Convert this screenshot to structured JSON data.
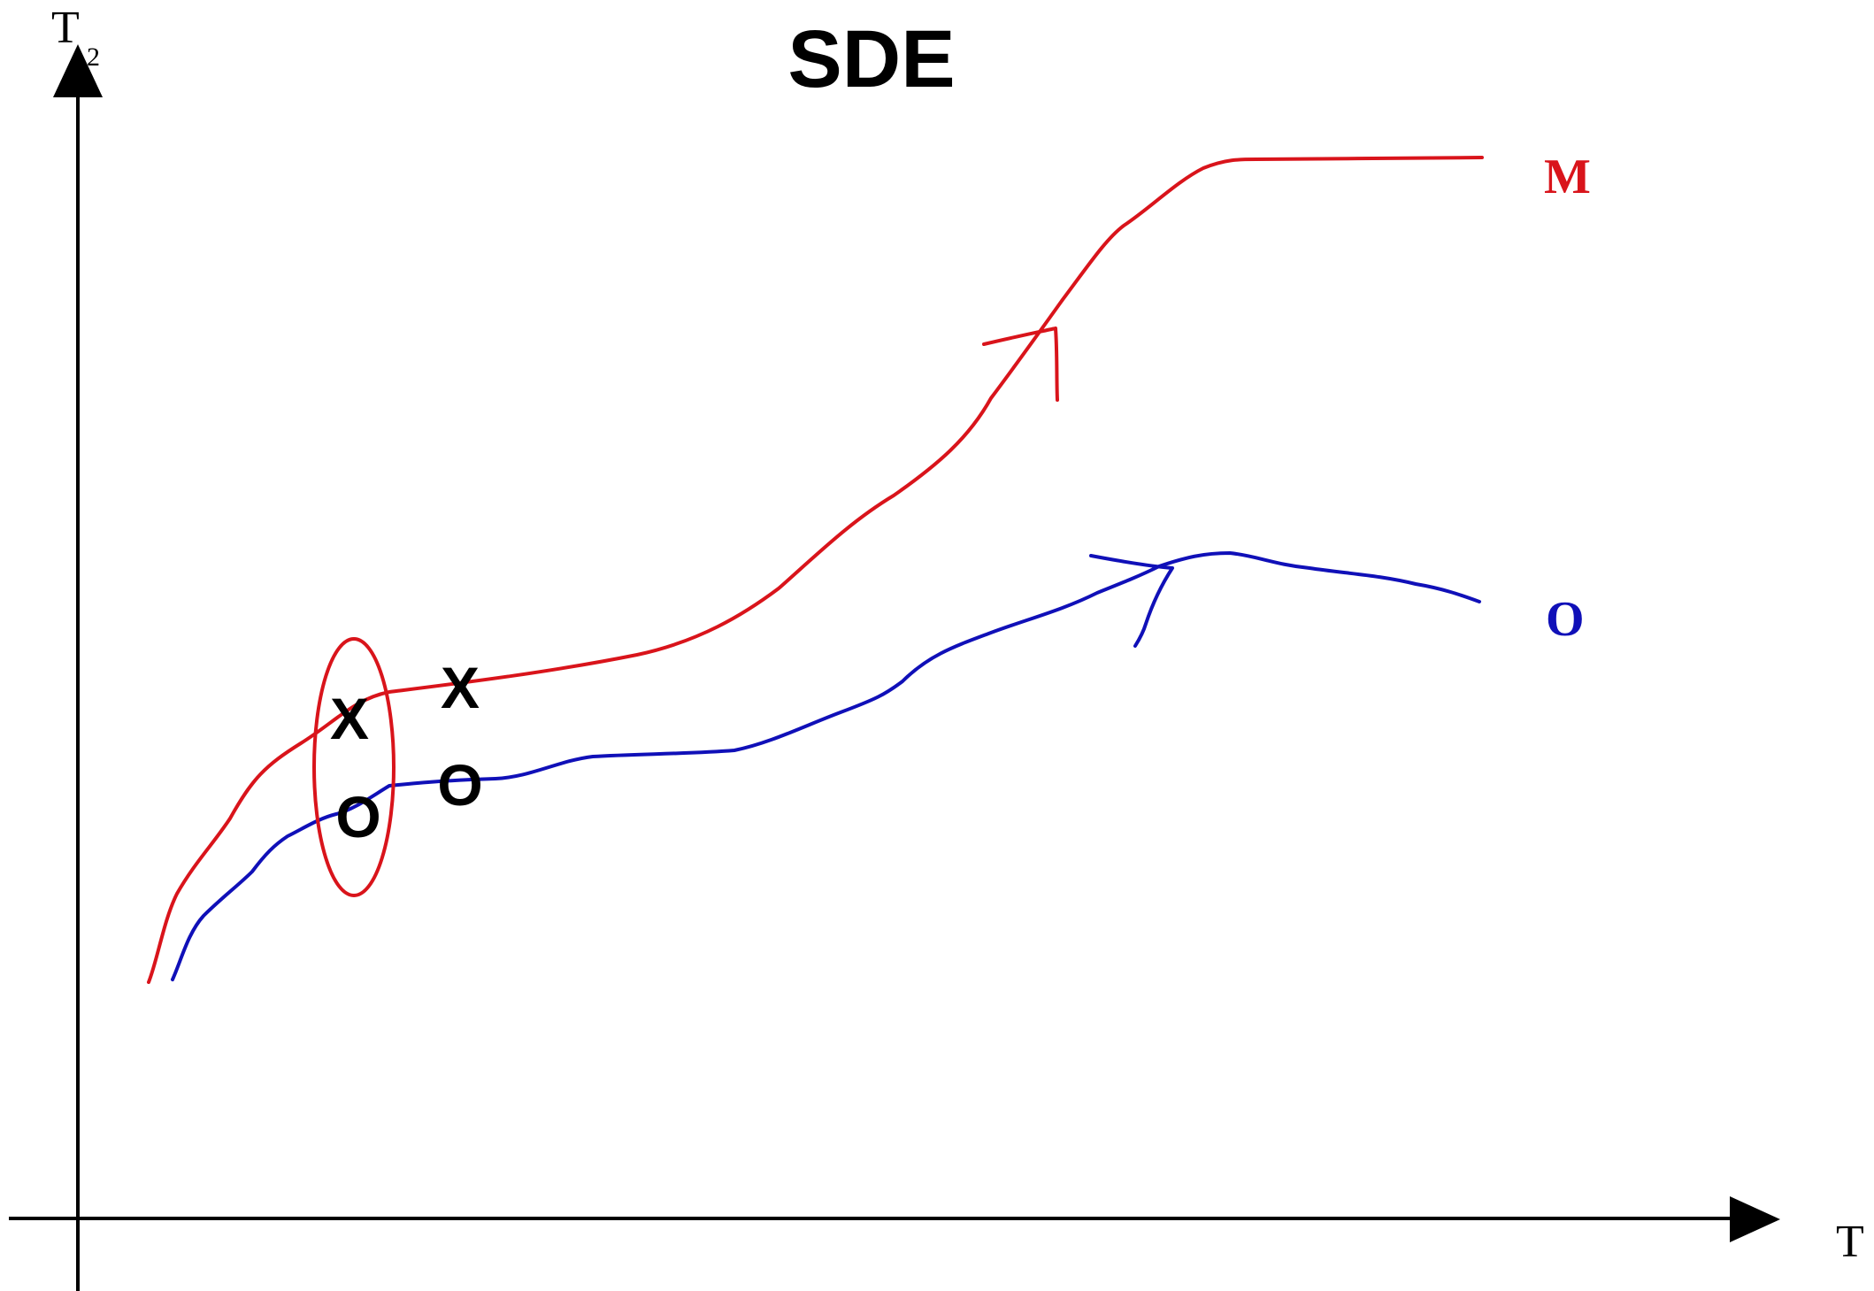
{
  "title": "SDE",
  "axes": {
    "y_label": "T",
    "y_label_subscript": "2",
    "x_label": "T"
  },
  "curves": [
    {
      "label": "M",
      "color": "#d9141b"
    },
    {
      "label": "O",
      "color": "#1010b8"
    }
  ],
  "markers": {
    "x_symbol": "X",
    "o_symbol": "O"
  },
  "ellipse_color": "#d9141b"
}
